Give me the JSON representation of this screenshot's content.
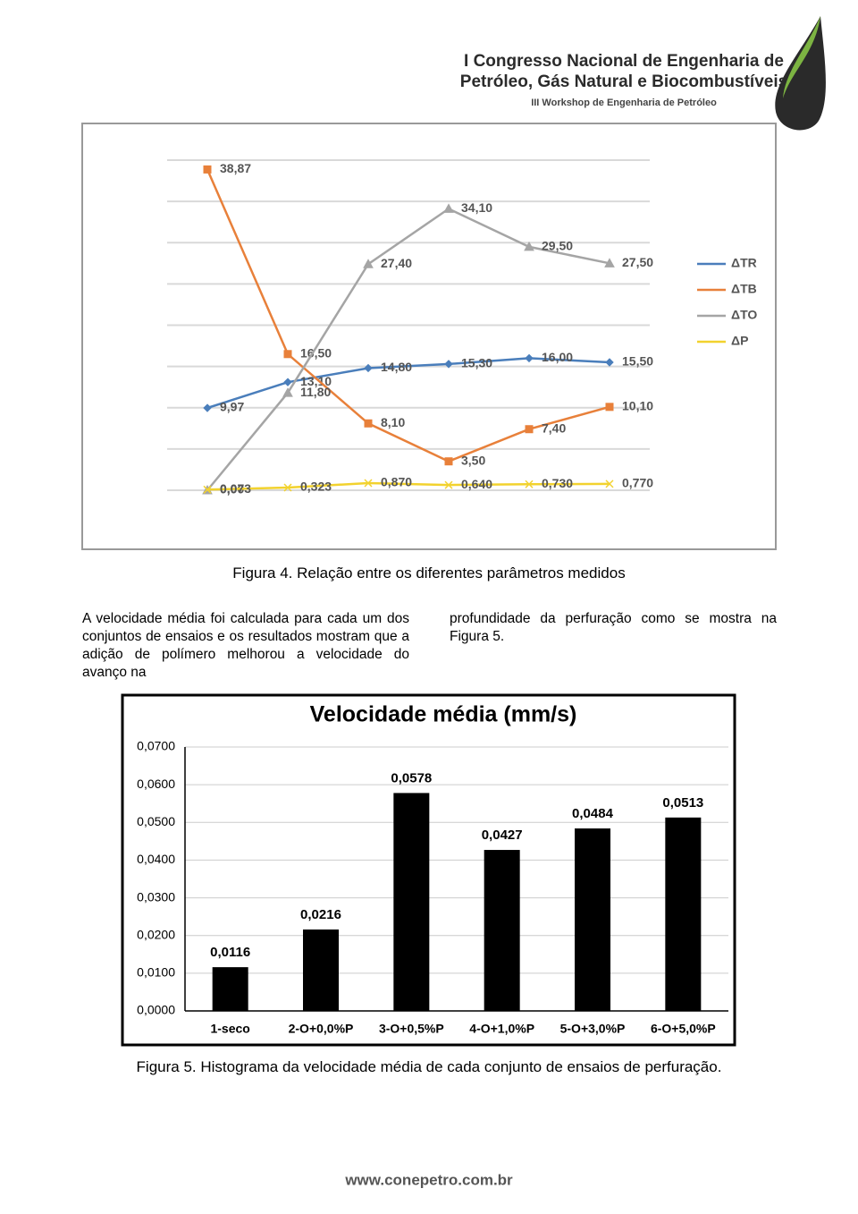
{
  "header": {
    "lines": [
      "I Congresso Nacional de Engenharia de",
      "Petróleo, Gás Natural e Biocombustíveis",
      "III Workshop de Engenharia de Petróleo"
    ]
  },
  "chart_data": [
    {
      "type": "line",
      "categories": [
        null,
        null,
        null,
        null,
        null,
        null
      ],
      "ylim": [
        0,
        40
      ],
      "yticks": [
        0,
        5,
        10,
        15,
        20,
        25,
        30,
        35,
        40
      ],
      "grid": true,
      "legend": "right",
      "series": [
        {
          "name": "ΔTR",
          "color": "#4a7ebb",
          "marker": "diamond",
          "values": [
            9.97,
            13.1,
            14.8,
            15.3,
            16.0,
            15.5
          ],
          "value_labels": [
            "9,97",
            "13,10",
            "14,80",
            "15,30",
            "16,00",
            "15,50"
          ]
        },
        {
          "name": "ΔTB",
          "color": "#e8803a",
          "marker": "square",
          "values": [
            38.87,
            16.5,
            8.1,
            3.5,
            7.4,
            10.1
          ],
          "value_labels": [
            "38,87",
            "16,50",
            "8,10",
            "3,50",
            "7,40",
            "10,10"
          ]
        },
        {
          "name": "ΔTO",
          "color": "#a5a5a5",
          "marker": "triangle",
          "values": [
            0.0,
            11.8,
            27.4,
            34.1,
            29.5,
            27.5
          ],
          "value_labels": [
            "0,00",
            "11,80",
            "27,40",
            "34,10",
            "29,50",
            "27,50"
          ]
        },
        {
          "name": "ΔP",
          "color": "#f2d22e",
          "marker": "x",
          "values": [
            0.073,
            0.323,
            0.87,
            0.64,
            0.73,
            0.77
          ],
          "value_labels": [
            "0,073",
            "0,323",
            "0,870",
            "0,640",
            "0,730",
            "0,770"
          ]
        }
      ]
    },
    {
      "type": "bar",
      "title": "Velocidade média (mm/s)",
      "color": "#000000",
      "grid": true,
      "categories": [
        "1-seco",
        "2-O+0,0%P",
        "3-O+0,5%P",
        "4-O+1,0%P",
        "5-O+3,0%P",
        "6-O+5,0%P"
      ],
      "values": [
        0.0116,
        0.0216,
        0.0578,
        0.0427,
        0.0484,
        0.0513
      ],
      "value_labels": [
        "0,0116",
        "0,0216",
        "0,0578",
        "0,0427",
        "0,0484",
        "0,0513"
      ],
      "ylim": [
        0,
        0.07
      ],
      "yticks": [
        {
          "value": 0,
          "label": "0,0000"
        },
        {
          "value": 0.01,
          "label": "0,0100"
        },
        {
          "value": 0.02,
          "label": "0,0200"
        },
        {
          "value": 0.03,
          "label": "0,0300"
        },
        {
          "value": 0.04,
          "label": "0,0400"
        },
        {
          "value": 0.05,
          "label": "0,0500"
        },
        {
          "value": 0.06,
          "label": "0,0600"
        },
        {
          "value": 0.07,
          "label": "0,0700"
        }
      ]
    }
  ],
  "figure_captions": [
    "Figura 4. Relação entre os diferentes parâmetros medidos",
    "Figura 5. Histograma da velocidade média de cada conjunto de ensaios de perfuração."
  ],
  "paragraph": {
    "columns": [
      "A velocidade média foi calculada para cada um dos conjuntos de ensaios e os resultados mostram que a adição de polímero melhorou a velocidade do avanço na",
      "profundidade da perfuração como se mostra na Figura 5."
    ]
  },
  "footer": "www.conepetro.com.br"
}
